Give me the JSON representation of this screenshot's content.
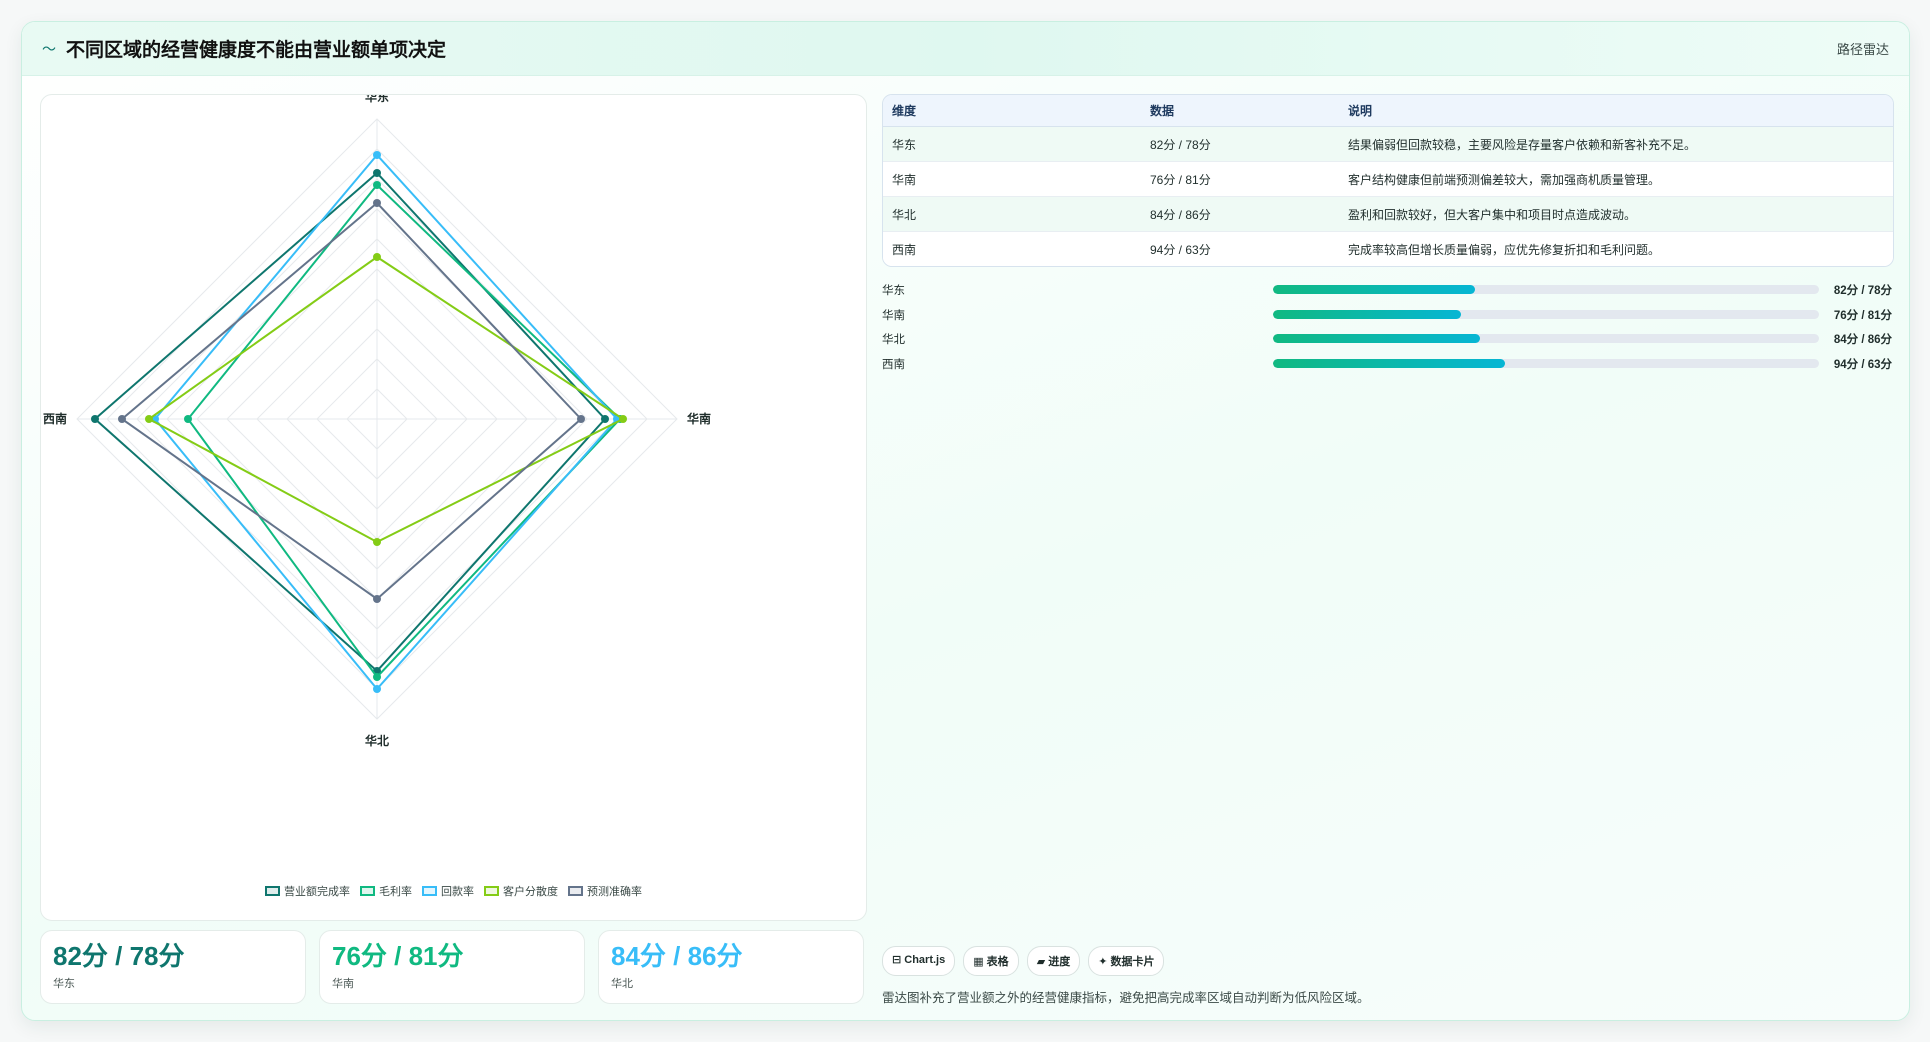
{
  "header": {
    "icon": "wave-icon",
    "title": "不同区域的经营健康度不能由营业额单项决定",
    "mode_label": "路径雷达"
  },
  "chart_data": {
    "type": "radar",
    "axes": [
      "华东",
      "华南",
      "华北",
      "西南"
    ],
    "series": [
      {
        "name": "营业额完成率",
        "color": "#0f766e",
        "values": [
          82,
          76,
          84,
          94
        ]
      },
      {
        "name": "毛利率",
        "color": "#10b981",
        "values": [
          78,
          81,
          86,
          63
        ]
      },
      {
        "name": "回款率",
        "color": "#38bdf8",
        "values": [
          88,
          80,
          90,
          74
        ]
      },
      {
        "name": "客户分散度",
        "color": "#84cc16",
        "values": [
          54,
          82,
          41,
          76
        ]
      },
      {
        "name": "预测准确率",
        "color": "#64748b",
        "values": [
          72,
          68,
          60,
          85
        ]
      }
    ],
    "r_range": [
      0,
      100
    ],
    "grid": true,
    "legend_position": "bottom"
  },
  "kpis": [
    {
      "value": "82分 / 78分",
      "label": "华东",
      "color": "#0f766e"
    },
    {
      "value": "76分 / 81分",
      "label": "华南",
      "color": "#10b981"
    },
    {
      "value": "84分 / 86分",
      "label": "华北",
      "color": "#38bdf8"
    }
  ],
  "table": {
    "headers": [
      "维度",
      "数据",
      "说明"
    ],
    "rows": [
      [
        "华东",
        "82分 / 78分",
        "结果偏弱但回款较稳，主要风险是存量客户依赖和新客补充不足。"
      ],
      [
        "华南",
        "76分 / 81分",
        "客户结构健康但前端预测偏差较大，需加强商机质量管理。"
      ],
      [
        "华北",
        "84分 / 86分",
        "盈利和回款较好，但大客户集中和项目时点造成波动。"
      ],
      [
        "西南",
        "94分 / 63分",
        "完成率较高但增长质量偏弱，应优先修复折扣和毛利问题。"
      ]
    ]
  },
  "progress": [
    {
      "label": "华东",
      "value": "82分 / 78分",
      "fraction": 0.37
    },
    {
      "label": "华南",
      "value": "76分 / 81分",
      "fraction": 0.345
    },
    {
      "label": "华北",
      "value": "84分 / 86分",
      "fraction": 0.38
    },
    {
      "label": "西南",
      "value": "94分 / 63分",
      "fraction": 0.425
    }
  ],
  "chips": [
    {
      "icon": "chart-icon",
      "label": "⊟ Chart.js"
    },
    {
      "icon": "table-icon",
      "label": "▦ 表格"
    },
    {
      "icon": "progress-icon",
      "label": "▰ 进度"
    },
    {
      "icon": "card-icon",
      "label": "✦ 数据卡片"
    }
  ],
  "footnote": "雷达图补充了营业额之外的经营健康指标，避免把高完成率区域自动判断为低风险区域。"
}
